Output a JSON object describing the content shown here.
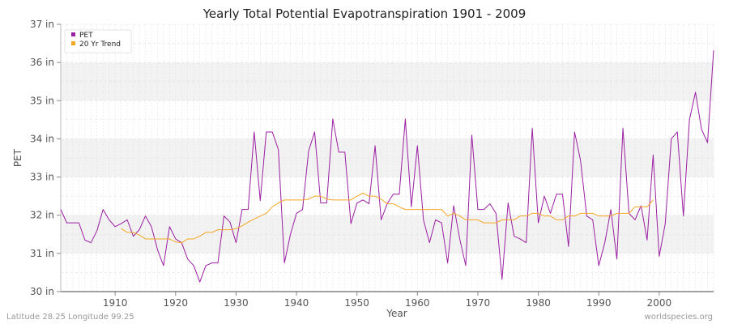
{
  "chart_data": {
    "type": "line",
    "title": "Yearly Total Potential Evapotranspiration 1901 - 2009",
    "xlabel": "Year",
    "ylabel": "PET",
    "xlim": [
      1901,
      2009
    ],
    "ylim": [
      30,
      37
    ],
    "x_ticks": [
      1910,
      1920,
      1930,
      1940,
      1950,
      1960,
      1970,
      1980,
      1990,
      2000
    ],
    "y_ticks": [
      {
        "value": 30,
        "label": "30 in"
      },
      {
        "value": 31,
        "label": "31 in"
      },
      {
        "value": 32,
        "label": "32 in"
      },
      {
        "value": 33,
        "label": "33 in"
      },
      {
        "value": 34,
        "label": "34 in"
      },
      {
        "value": 35,
        "label": "35 in"
      },
      {
        "value": 36,
        "label": "36 in"
      },
      {
        "value": 37,
        "label": "37 in"
      }
    ],
    "grid": true,
    "legend_position": "top-left",
    "series": [
      {
        "name": "PET",
        "color": "#9b1fa2",
        "x_start": 1901,
        "values": [
          32.15,
          31.8,
          31.8,
          31.8,
          31.35,
          31.28,
          31.6,
          32.15,
          31.88,
          31.7,
          31.78,
          31.88,
          31.45,
          31.62,
          31.98,
          31.7,
          31.1,
          30.68,
          31.7,
          31.38,
          31.28,
          30.85,
          30.68,
          30.25,
          30.68,
          30.75,
          30.75,
          31.98,
          31.82,
          31.28,
          32.15,
          32.15,
          34.18,
          32.38,
          34.18,
          34.18,
          33.72,
          30.75,
          31.5,
          32.05,
          32.15,
          33.68,
          34.18,
          32.32,
          32.32,
          34.52,
          33.65,
          33.65,
          31.78,
          32.32,
          32.4,
          32.3,
          33.82,
          31.88,
          32.3,
          32.55,
          32.55,
          34.52,
          32.22,
          33.82,
          31.88,
          31.28,
          31.88,
          31.8,
          30.75,
          32.25,
          31.38,
          30.68,
          34.1,
          32.15,
          32.15,
          32.3,
          32.05,
          30.32,
          32.32,
          31.45,
          31.38,
          31.28,
          34.28,
          31.8,
          32.5,
          32.05,
          32.55,
          32.55,
          31.18,
          34.18,
          33.42,
          31.98,
          31.88,
          30.68,
          31.28,
          32.15,
          30.85,
          34.28,
          32.05,
          31.88,
          32.25,
          31.35,
          33.58,
          30.92,
          31.78,
          34.0,
          34.18,
          31.98,
          34.5,
          35.22,
          34.25,
          33.9,
          36.32
        ]
      },
      {
        "name": "20 Yr Trend",
        "color": "#f5a623",
        "x_start": 1911,
        "values": [
          31.65,
          31.55,
          31.55,
          31.48,
          31.38,
          31.38,
          31.38,
          31.38,
          31.38,
          31.3,
          31.28,
          31.38,
          31.38,
          31.45,
          31.55,
          31.55,
          31.62,
          31.62,
          31.62,
          31.65,
          31.72,
          31.82,
          31.9,
          31.98,
          32.05,
          32.22,
          32.32,
          32.4,
          32.4,
          32.4,
          32.4,
          32.42,
          32.5,
          32.5,
          32.42,
          32.4,
          32.4,
          32.4,
          32.4,
          32.5,
          32.58,
          32.5,
          32.5,
          32.42,
          32.3,
          32.3,
          32.22,
          32.15,
          32.15,
          32.15,
          32.15,
          32.15,
          32.15,
          32.15,
          31.98,
          32.05,
          31.98,
          31.88,
          31.88,
          31.88,
          31.8,
          31.8,
          31.8,
          31.88,
          31.88,
          31.88,
          31.98,
          31.98,
          32.05,
          32.05,
          31.98,
          31.98,
          31.88,
          31.88,
          31.98,
          31.98,
          32.05,
          32.05,
          32.05,
          31.98,
          31.98,
          31.98,
          32.05,
          32.05,
          32.05,
          32.22,
          32.22,
          32.22,
          32.4
        ]
      }
    ]
  },
  "footer": {
    "location": "Latitude 28.25 Longitude 99.25",
    "credit": "worldspecies.org"
  }
}
